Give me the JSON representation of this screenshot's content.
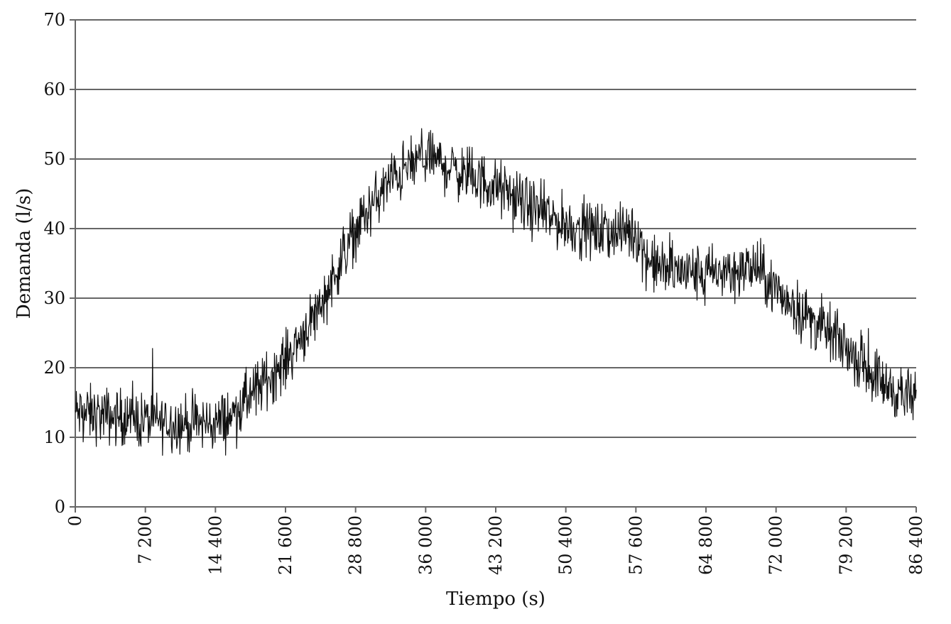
{
  "chart_data": {
    "type": "line",
    "title": "",
    "xlabel": "Tiempo (s)",
    "ylabel": "Demanda (l/s)",
    "xlim": [
      0,
      86400
    ],
    "ylim": [
      0,
      70
    ],
    "grid": true,
    "legend": "none",
    "x_ticks": [
      0,
      7200,
      14400,
      21600,
      28800,
      36000,
      43200,
      50400,
      57600,
      64800,
      72000,
      79200,
      86400
    ],
    "x_tick_labels": [
      "0",
      "7 200",
      "14 400",
      "21 600",
      "28 800",
      "36 000",
      "43 200",
      "50 400",
      "57 600",
      "64 800",
      "72 000",
      "79 200",
      "86 400"
    ],
    "y_ticks": [
      0,
      10,
      20,
      30,
      40,
      50,
      60,
      70
    ],
    "y_tick_labels": [
      "0",
      "10",
      "20",
      "30",
      "40",
      "50",
      "60",
      "70"
    ],
    "series": [
      {
        "color": "#111111",
        "noise_amplitude": 3.5,
        "x": [
          0,
          3600,
          7200,
          10800,
          14400,
          16000,
          18000,
          21600,
          25200,
          28800,
          32400,
          36000,
          39600,
          43200,
          46800,
          50400,
          54000,
          57600,
          59000,
          61200,
          64800,
          68400,
          70000,
          72000,
          75600,
          79200,
          82800,
          86400
        ],
        "y": [
          13.5,
          13,
          12.5,
          12,
          12,
          13,
          16,
          21,
          29,
          40,
          47,
          50.5,
          48,
          46,
          43,
          40.5,
          39.5,
          39.5,
          35,
          34,
          33.5,
          34,
          34.5,
          31,
          27,
          23,
          18,
          15
        ]
      }
    ]
  }
}
